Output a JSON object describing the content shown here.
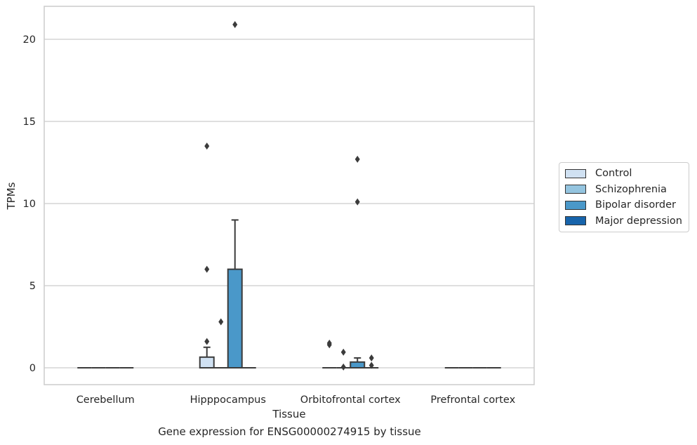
{
  "chart_data": {
    "type": "box",
    "title": "Gene expression for ENSG00000274915 by tissue",
    "xlabel": "Tissue",
    "ylabel": "TPMs",
    "ylim": [
      -1,
      22
    ],
    "yticks": [
      0,
      5,
      10,
      15,
      20
    ],
    "grid": "horizontal",
    "legend_position": "right",
    "categories": [
      "Cerebellum",
      "Hipppocampus",
      "Orbitofrontal cortex",
      "Prefrontal cortex"
    ],
    "series": [
      {
        "name": "Control",
        "color": "#d0e1f2",
        "boxes": [
          {
            "category": "Cerebellum",
            "q1": 0,
            "median": 0,
            "q3": 0,
            "whisker_low": 0,
            "whisker_high": 0,
            "outliers": []
          },
          {
            "category": "Hipppocampus",
            "q1": 0,
            "median": 0,
            "q3": 0.65,
            "whisker_low": 0,
            "whisker_high": 1.25,
            "outliers": [
              1.6,
              6.0,
              13.5
            ]
          },
          {
            "category": "Orbitofrontal cortex",
            "q1": 0,
            "median": 0,
            "q3": 0,
            "whisker_low": 0,
            "whisker_high": 0,
            "outliers": [
              1.4,
              1.5
            ]
          },
          {
            "category": "Prefrontal cortex",
            "q1": 0,
            "median": 0,
            "q3": 0,
            "whisker_low": 0,
            "whisker_high": 0,
            "outliers": []
          }
        ]
      },
      {
        "name": "Schizophrenia",
        "color": "#94c4df",
        "boxes": [
          {
            "category": "Cerebellum",
            "q1": 0,
            "median": 0,
            "q3": 0,
            "whisker_low": 0,
            "whisker_high": 0,
            "outliers": []
          },
          {
            "category": "Hipppocampus",
            "q1": 0,
            "median": 0,
            "q3": 0,
            "whisker_low": 0,
            "whisker_high": 0,
            "outliers": [
              2.8
            ]
          },
          {
            "category": "Orbitofrontal cortex",
            "q1": 0,
            "median": 0,
            "q3": 0,
            "whisker_low": 0,
            "whisker_high": 0,
            "outliers": [
              0.05,
              0.95
            ]
          },
          {
            "category": "Prefrontal cortex",
            "q1": 0,
            "median": 0,
            "q3": 0,
            "whisker_low": 0,
            "whisker_high": 0,
            "outliers": []
          }
        ]
      },
      {
        "name": "Bipolar disorder",
        "color": "#4a98c9",
        "boxes": [
          {
            "category": "Cerebellum",
            "q1": 0,
            "median": 0,
            "q3": 0,
            "whisker_low": 0,
            "whisker_high": 0,
            "outliers": []
          },
          {
            "category": "Hipppocampus",
            "q1": 0,
            "median": 0,
            "q3": 6.0,
            "whisker_low": 0,
            "whisker_high": 9.0,
            "outliers": [
              20.9
            ]
          },
          {
            "category": "Orbitofrontal cortex",
            "q1": 0,
            "median": 0,
            "q3": 0.35,
            "whisker_low": 0,
            "whisker_high": 0.6,
            "outliers": [
              10.1,
              12.7
            ]
          },
          {
            "category": "Prefrontal cortex",
            "q1": 0,
            "median": 0,
            "q3": 0,
            "whisker_low": 0,
            "whisker_high": 0,
            "outliers": []
          }
        ]
      },
      {
        "name": "Major depression",
        "color": "#1764ab",
        "boxes": [
          {
            "category": "Cerebellum",
            "q1": 0,
            "median": 0,
            "q3": 0,
            "whisker_low": 0,
            "whisker_high": 0,
            "outliers": []
          },
          {
            "category": "Hipppocampus",
            "q1": 0,
            "median": 0,
            "q3": 0,
            "whisker_low": 0,
            "whisker_high": 0,
            "outliers": []
          },
          {
            "category": "Orbitofrontal cortex",
            "q1": 0,
            "median": 0,
            "q3": 0,
            "whisker_low": 0,
            "whisker_high": 0,
            "outliers": [
              0.15,
              0.6
            ]
          },
          {
            "category": "Prefrontal cortex",
            "q1": 0,
            "median": 0,
            "q3": 0,
            "whisker_low": 0,
            "whisker_high": 0,
            "outliers": []
          }
        ]
      }
    ]
  }
}
